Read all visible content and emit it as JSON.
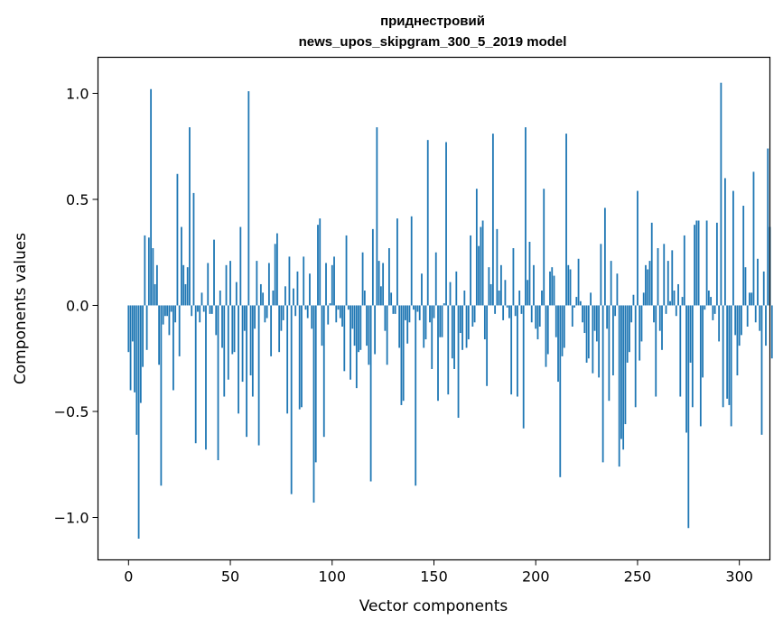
{
  "chart_data": {
    "type": "bar",
    "title_line1": "приднестровий",
    "title_line2": "news_upos_skipgram_300_5_2019 model",
    "xlabel": "Vector components",
    "ylabel": "Components values",
    "xlim": [
      -15,
      315
    ],
    "ylim": [
      -1.2,
      1.17
    ],
    "xticks": [
      0,
      50,
      100,
      150,
      200,
      250,
      300
    ],
    "xtick_labels": [
      "0",
      "50",
      "100",
      "150",
      "200",
      "250",
      "300"
    ],
    "yticks": [
      -1.0,
      -0.5,
      0.0,
      0.5,
      1.0
    ],
    "ytick_labels": [
      "−1.0",
      "−0.5",
      "0.0",
      "0.5",
      "1.0"
    ],
    "grid": false,
    "bar_color": "#1f77b4",
    "values": [
      -0.22,
      -0.4,
      -0.17,
      -0.41,
      -0.61,
      -1.1,
      -0.46,
      -0.29,
      0.33,
      -0.21,
      0.32,
      1.02,
      0.27,
      0.1,
      0.19,
      -0.28,
      -0.85,
      -0.09,
      -0.05,
      -0.05,
      -0.14,
      -0.03,
      -0.4,
      -0.08,
      0.62,
      -0.24,
      0.37,
      0.19,
      0.1,
      0.18,
      0.84,
      -0.05,
      0.53,
      -0.65,
      -0.03,
      -0.08,
      0.06,
      -0.03,
      -0.68,
      0.2,
      -0.04,
      -0.04,
      0.31,
      -0.14,
      -0.73,
      0.07,
      -0.2,
      -0.43,
      0.19,
      -0.35,
      0.21,
      -0.23,
      -0.22,
      0.11,
      -0.51,
      0.37,
      -0.36,
      -0.12,
      -0.62,
      1.01,
      -0.33,
      -0.43,
      -0.11,
      0.21,
      -0.66,
      0.1,
      0.06,
      -0.08,
      -0.06,
      0.2,
      -0.24,
      0.07,
      0.29,
      0.34,
      -0.22,
      -0.12,
      -0.07,
      0.09,
      -0.51,
      0.23,
      -0.89,
      0.08,
      -0.05,
      0.16,
      -0.49,
      -0.48,
      0.23,
      -0.02,
      -0.06,
      0.15,
      -0.11,
      -0.93,
      -0.74,
      0.38,
      0.41,
      -0.19,
      -0.62,
      0.2,
      -0.09,
      0.01,
      0.19,
      0.23,
      -0.08,
      -0.02,
      -0.06,
      -0.1,
      -0.31,
      0.33,
      -0.02,
      -0.35,
      -0.11,
      -0.19,
      -0.39,
      -0.22,
      -0.21,
      0.25,
      0.07,
      -0.19,
      -0.28,
      -0.83,
      0.36,
      -0.23,
      0.84,
      0.21,
      0.09,
      0.2,
      -0.12,
      -0.28,
      0.27,
      0.06,
      -0.04,
      -0.04,
      0.41,
      -0.2,
      -0.47,
      -0.45,
      -0.07,
      -0.18,
      -0.08,
      0.42,
      -0.02,
      -0.85,
      -0.03,
      -0.07,
      0.15,
      -0.2,
      -0.16,
      0.78,
      -0.08,
      -0.3,
      -0.06,
      0.25,
      -0.45,
      -0.15,
      -0.15,
      0.01,
      0.77,
      -0.42,
      0.11,
      -0.25,
      -0.3,
      0.16,
      -0.53,
      -0.13,
      -0.21,
      0.07,
      -0.2,
      -0.16,
      0.33,
      -0.1,
      -0.08,
      0.55,
      0.28,
      0.37,
      0.4,
      -0.16,
      -0.38,
      0.18,
      0.1,
      0.81,
      -0.04,
      0.36,
      0.07,
      0.19,
      -0.07,
      0.12,
      -0.01,
      -0.06,
      -0.42,
      0.27,
      -0.05,
      -0.43,
      0.07,
      -0.04,
      -0.58,
      0.84,
      0.12,
      0.3,
      -0.08,
      0.19,
      -0.11,
      -0.16,
      -0.1,
      0.07,
      0.55,
      -0.29,
      -0.23,
      0.16,
      0.18,
      0.14,
      -0.15,
      -0.36,
      -0.81,
      -0.24,
      -0.2,
      0.81,
      0.19,
      0.17,
      -0.1,
      -0.01,
      0.04,
      0.22,
      0.02,
      -0.08,
      -0.13,
      -0.27,
      -0.25,
      0.06,
      -0.32,
      -0.12,
      -0.17,
      -0.34,
      0.29,
      -0.74,
      0.46,
      -0.11,
      -0.45,
      0.21,
      -0.33,
      -0.05,
      0.15,
      -0.76,
      -0.63,
      -0.68,
      -0.56,
      -0.27,
      -0.22,
      -0.08,
      0.05,
      -0.48,
      0.54,
      -0.26,
      -0.17,
      0.06,
      0.19,
      0.17,
      0.21,
      0.39,
      -0.08,
      -0.43,
      0.27,
      -0.12,
      -0.21,
      0.29,
      -0.04,
      0.21,
      0.02,
      0.26,
      0.07,
      -0.05,
      0.1,
      -0.43,
      0.04,
      0.33,
      -0.6,
      -1.05,
      -0.27,
      -0.48,
      0.38,
      0.4,
      0.4,
      -0.57,
      -0.34,
      -0.02,
      0.4,
      0.07,
      0.04,
      -0.07,
      -0.04,
      0.39,
      -0.17,
      1.05,
      -0.48,
      0.6,
      -0.44,
      -0.47,
      -0.57,
      0.54,
      -0.14,
      -0.33,
      -0.19,
      -0.14,
      0.47,
      0.18,
      -0.1,
      0.06,
      0.06,
      0.63,
      -0.08,
      0.22,
      -0.12,
      -0.61,
      0.16,
      -0.19,
      0.74,
      0.37,
      -0.25
    ]
  }
}
